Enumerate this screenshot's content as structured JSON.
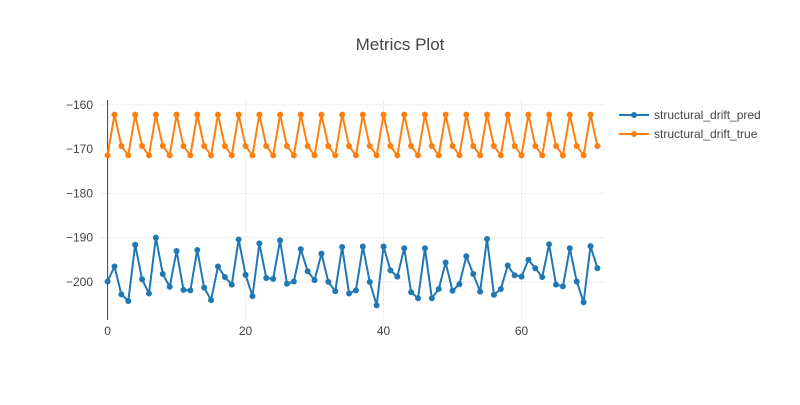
{
  "chart_data": {
    "type": "line",
    "title": "Metrics Plot",
    "xlabel": "",
    "ylabel": "",
    "xlim": [
      -1.1,
      72.1
    ],
    "ylim": [
      -208.6,
      -158.9
    ],
    "xticks": [
      0,
      20,
      40,
      60
    ],
    "yticks": [
      -160,
      -170,
      -180,
      -190,
      -200
    ],
    "grid": true,
    "legend": "top-right",
    "x": [
      0,
      1,
      2,
      3,
      4,
      5,
      6,
      7,
      8,
      9,
      10,
      11,
      12,
      13,
      14,
      15,
      16,
      17,
      18,
      19,
      20,
      21,
      22,
      23,
      24,
      25,
      26,
      27,
      28,
      29,
      30,
      31,
      32,
      33,
      34,
      35,
      36,
      37,
      38,
      39,
      40,
      41,
      42,
      43,
      44,
      45,
      46,
      47,
      48,
      49,
      50,
      51,
      52,
      53,
      54,
      55,
      56,
      57,
      58,
      59,
      60,
      61,
      62,
      63,
      64,
      65,
      66,
      67,
      68,
      69,
      70,
      71
    ],
    "series": [
      {
        "name": "structural_drift_pred",
        "color": "#1f77b4",
        "values": [
          -199.9,
          -196.5,
          -202.8,
          -204.3,
          -191.6,
          -199.4,
          -202.6,
          -190.0,
          -198.2,
          -201.1,
          -193.0,
          -201.8,
          -201.9,
          -192.8,
          -201.3,
          -204.1,
          -196.5,
          -198.9,
          -200.6,
          -190.4,
          -198.4,
          -203.2,
          -191.3,
          -199.1,
          -199.3,
          -190.6,
          -200.4,
          -199.9,
          -192.6,
          -197.6,
          -199.6,
          -193.6,
          -200.0,
          -202.1,
          -192.1,
          -202.6,
          -201.9,
          -192.0,
          -200.0,
          -205.3,
          -192.0,
          -197.4,
          -198.8,
          -192.4,
          -202.3,
          -203.7,
          -192.4,
          -203.7,
          -201.6,
          -195.6,
          -202.0,
          -200.5,
          -194.2,
          -198.2,
          -202.2,
          -190.3,
          -202.9,
          -201.6,
          -196.3,
          -198.5,
          -198.8,
          -195.0,
          -196.9,
          -198.9,
          -191.5,
          -200.6,
          -201.0,
          -192.4,
          -199.9,
          -204.6,
          -191.9,
          -196.9
        ]
      },
      {
        "name": "structural_drift_true",
        "color": "#ff7f0e",
        "values": [
          -171.4,
          -162.2,
          -169.3,
          -171.4,
          -162.2,
          -169.3,
          -171.4,
          -162.2,
          -169.3,
          -171.4,
          -162.2,
          -169.3,
          -171.4,
          -162.2,
          -169.3,
          -171.4,
          -162.2,
          -169.3,
          -171.4,
          -162.2,
          -169.3,
          -171.4,
          -162.2,
          -169.3,
          -171.4,
          -162.2,
          -169.3,
          -171.4,
          -162.2,
          -169.3,
          -171.4,
          -162.2,
          -169.3,
          -171.4,
          -162.2,
          -169.3,
          -171.4,
          -162.2,
          -169.3,
          -171.4,
          -162.2,
          -169.3,
          -171.4,
          -162.2,
          -169.3,
          -171.4,
          -162.2,
          -169.3,
          -171.4,
          -162.2,
          -169.3,
          -171.4,
          -162.2,
          -169.3,
          -171.4,
          -162.2,
          -169.3,
          -171.4,
          -162.2,
          -169.3,
          -171.4,
          -162.2,
          -169.3,
          -171.4,
          -162.2,
          -169.3,
          -171.4,
          -162.2,
          -169.3,
          -171.4,
          -162.2,
          -169.3
        ]
      }
    ]
  }
}
